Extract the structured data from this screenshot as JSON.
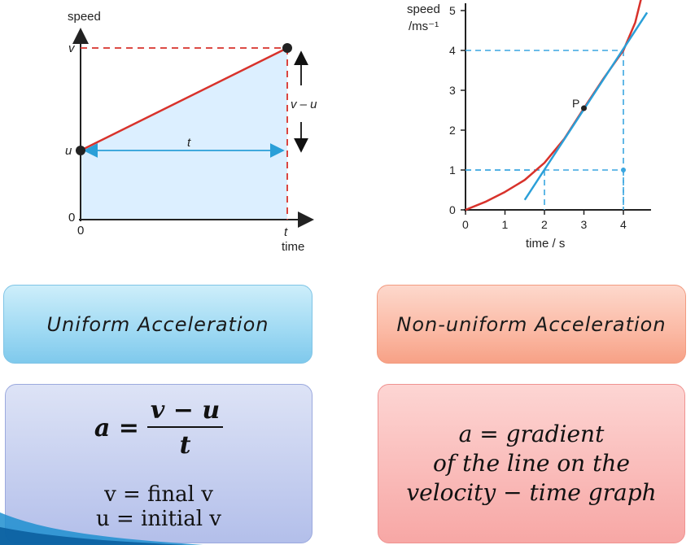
{
  "chart_data": [
    {
      "type": "line",
      "title": "",
      "xlabel": "time",
      "ylabel": "speed",
      "tick_labels_x": [
        "0",
        "t"
      ],
      "tick_labels_y": [
        "0",
        "u",
        "v"
      ],
      "series": [
        {
          "x": [
            0,
            1
          ],
          "y": [
            0.3,
            0.85
          ]
        }
      ],
      "annotations": [
        "t",
        "v – u"
      ],
      "shaded_area": "under line",
      "grid": false
    },
    {
      "type": "line",
      "title": "",
      "xlabel": "time / s",
      "ylabel": "speed /ms⁻¹",
      "xlim": [
        0,
        4.7
      ],
      "ylim": [
        0,
        5.3
      ],
      "xticks": [
        0,
        1,
        2,
        3,
        4
      ],
      "yticks": [
        0,
        1,
        2,
        3,
        4,
        5
      ],
      "series": [
        {
          "x": [
            0,
            0.5,
            1,
            1.5,
            2,
            2.5,
            3,
            3.5,
            4,
            4.3,
            4.45
          ],
          "y": [
            0,
            0.2,
            0.45,
            0.75,
            1.18,
            1.78,
            2.55,
            3.3,
            4.0,
            4.7,
            5.3
          ]
        },
        {
          "x": [
            1.5,
            4.6
          ],
          "y": [
            0.25,
            4.95
          ]
        }
      ],
      "annotations": [
        "P"
      ],
      "point_p": [
        3,
        2.55
      ],
      "guides": [
        [
          2,
          1
        ],
        [
          4,
          1
        ],
        [
          4,
          4
        ]
      ],
      "grid": false
    }
  ],
  "labels": {
    "uniform": "Uniform Acceleration",
    "nonuniform": "Non-uniform Acceleration"
  },
  "formula": {
    "lhs": "a =",
    "numerator": "v − u",
    "denominator": "t",
    "def_v": "v = final v",
    "def_u": "u = initial v"
  },
  "gradient": {
    "line1": "a = gradient",
    "line2": "of the line on the",
    "line3": "velocity − time graph"
  },
  "colors": {
    "line_red": "#d8322b",
    "line_blue": "#2a9fd8",
    "fill_blue": "#dcefff",
    "dash_red": "#d8322b",
    "dash_blue": "#3aa6e0"
  }
}
